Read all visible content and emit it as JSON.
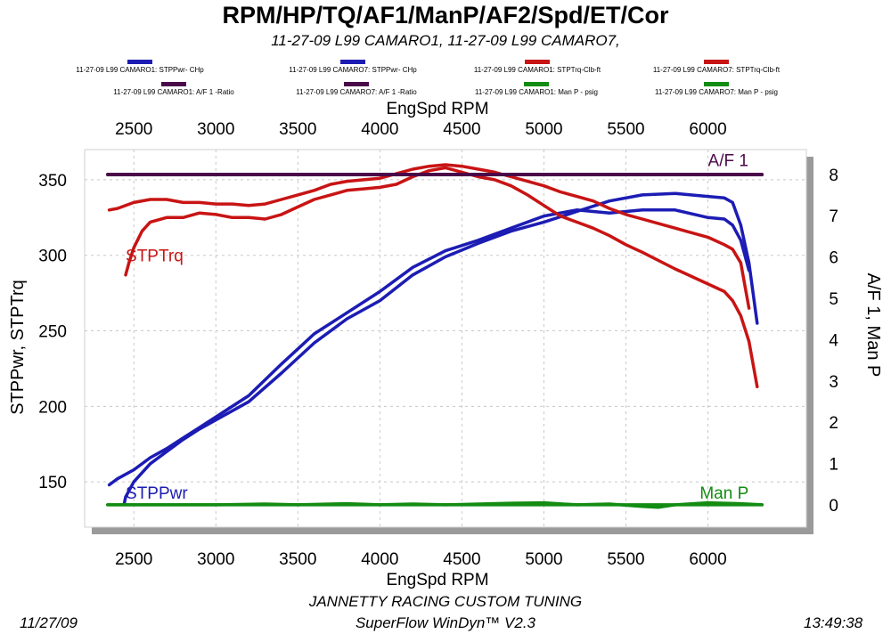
{
  "title": "RPM/HP/TQ/AF1/ManP/AF2/Spd/ET/Cor",
  "subtitle": "11-27-09 L99 CAMARO1, 11-27-09 L99 CAMARO7,",
  "legend": [
    {
      "label": "11-27-09 L99 CAMARO1: STPPwr- CHp",
      "color": "#1c1cb4"
    },
    {
      "label": "11-27-09 L99 CAMARO7: STPPwr- CHp",
      "color": "#1c1cb4"
    },
    {
      "label": "11-27-09 L99 CAMARO1: STPTrq-Clb-ft",
      "color": "#c81414"
    },
    {
      "label": "11-27-09 L99 CAMARO7: STPTrq-Clb-ft",
      "color": "#c81414"
    },
    {
      "label": "11-27-09 L99 CAMARO1: A/F 1 -Ratio",
      "color": "#4a0a4a"
    },
    {
      "label": "11-27-09 L99 CAMARO7: A/F 1 -Ratio",
      "color": "#4a0a4a"
    },
    {
      "label": "11-27-09 L99 CAMARO1: Man P - psig",
      "color": "#128c12"
    },
    {
      "label": "11-27-09 L99 CAMARO7: Man P - psig",
      "color": "#128c12"
    }
  ],
  "footer": {
    "shop": "JANNETTY RACING CUSTOM TUNING",
    "software": "SuperFlow WinDyn™ V2.3",
    "date": "11/27/09",
    "time": "13:49:38"
  },
  "chart_data": {
    "type": "line",
    "xlabel": "EngSpd  RPM",
    "ylabel_left": "STPPwr, STPTrq",
    "ylabel_right": "A/F 1, Man P",
    "xlim": [
      2200,
      6600
    ],
    "ylim_left": [
      120,
      370
    ],
    "ylim_right": [
      -0.54,
      8.6
    ],
    "x_ticks": [
      2500,
      3000,
      3500,
      4000,
      4500,
      5000,
      5500,
      6000
    ],
    "y_ticks_left": [
      150,
      200,
      250,
      300,
      350
    ],
    "y_ticks_right": [
      0,
      1,
      2,
      3,
      4,
      5,
      6,
      7,
      8
    ],
    "grid": true,
    "annotations": [
      {
        "text": "STPTrq",
        "color": "#c81414",
        "x": 2450,
        "y": 296,
        "axis": "left"
      },
      {
        "text": "STPPwr",
        "color": "#1c1cb4",
        "x": 2450,
        "y": 139,
        "axis": "left"
      },
      {
        "text": "A/F 1",
        "color": "#4a0a4a",
        "x": 6000,
        "y": 8.2,
        "axis": "right"
      },
      {
        "text": "Man P",
        "color": "#128c12",
        "x": 5950,
        "y": 0.15,
        "axis": "right"
      }
    ],
    "series": [
      {
        "axis": "left",
        "color": "#1c1cb4",
        "x": [
          2440,
          2450,
          2500,
          2600,
          2700,
          2800,
          2900,
          3000,
          3200,
          3400,
          3600,
          3800,
          4000,
          4200,
          4400,
          4600,
          4800,
          5000,
          5200,
          5400,
          5600,
          5800,
          6000,
          6100,
          6150,
          6200,
          6250,
          6300
        ],
        "values": [
          135,
          140,
          150,
          162,
          170,
          178,
          185,
          191,
          203,
          222,
          242,
          258,
          270,
          287,
          299,
          308,
          316,
          322,
          329,
          336,
          340,
          341,
          339,
          338,
          335,
          320,
          295,
          255
        ]
      },
      {
        "axis": "left",
        "color": "#1c1cb4",
        "x": [
          2350,
          2400,
          2500,
          2600,
          2700,
          2800,
          2900,
          3000,
          3200,
          3400,
          3600,
          3800,
          4000,
          4200,
          4400,
          4600,
          4800,
          5000,
          5200,
          5400,
          5600,
          5800,
          6000,
          6100,
          6150,
          6200,
          6250
        ],
        "values": [
          148,
          152,
          158,
          166,
          172,
          179,
          186,
          193,
          207,
          228,
          248,
          262,
          276,
          292,
          303,
          310,
          318,
          326,
          330,
          328,
          330,
          330,
          325,
          324,
          320,
          310,
          290
        ]
      },
      {
        "axis": "left",
        "color": "#c81414",
        "x": [
          2450,
          2470,
          2500,
          2550,
          2600,
          2700,
          2800,
          2900,
          3000,
          3100,
          3200,
          3300,
          3400,
          3500,
          3600,
          3700,
          3800,
          3900,
          4000,
          4100,
          4200,
          4300,
          4400,
          4500,
          4600,
          4700,
          4800,
          4900,
          5000,
          5100,
          5200,
          5300,
          5400,
          5500,
          5600,
          5800,
          6000,
          6100,
          6150,
          6200,
          6250,
          6300
        ],
        "values": [
          287,
          295,
          305,
          316,
          322,
          325,
          325,
          328,
          327,
          325,
          325,
          324,
          327,
          332,
          337,
          340,
          343,
          344,
          345,
          347,
          352,
          356,
          358,
          355,
          352,
          350,
          346,
          340,
          333,
          326,
          322,
          318,
          313,
          307,
          302,
          291,
          281,
          276,
          270,
          260,
          243,
          213
        ]
      },
      {
        "axis": "left",
        "color": "#c81414",
        "x": [
          2350,
          2400,
          2500,
          2600,
          2700,
          2800,
          2900,
          3000,
          3100,
          3200,
          3300,
          3400,
          3500,
          3600,
          3700,
          3800,
          3900,
          4000,
          4100,
          4200,
          4300,
          4400,
          4500,
          4600,
          4700,
          4800,
          4900,
          5000,
          5100,
          5200,
          5300,
          5400,
          5500,
          5600,
          5800,
          6000,
          6100,
          6150,
          6200,
          6250
        ],
        "values": [
          330,
          331,
          335,
          337,
          337,
          335,
          335,
          334,
          334,
          333,
          334,
          337,
          340,
          343,
          347,
          349,
          350,
          351,
          354,
          357,
          359,
          360,
          359,
          357,
          355,
          352,
          349,
          346,
          342,
          339,
          336,
          331,
          327,
          324,
          318,
          312,
          307,
          304,
          295,
          265
        ]
      },
      {
        "axis": "right",
        "color": "#4a0a4a",
        "x": [
          2340,
          6330
        ],
        "values": [
          8.0,
          8.0
        ]
      },
      {
        "axis": "right",
        "color": "#4a0a4a",
        "x": [
          2340,
          6330
        ],
        "values": [
          7.99,
          7.99
        ]
      },
      {
        "axis": "right",
        "color": "#128c12",
        "x": [
          2340,
          3000,
          3300,
          3500,
          3800,
          4000,
          4200,
          4400,
          4800,
          5000,
          5200,
          5400,
          5600,
          5700,
          5800,
          6000,
          6200,
          6330
        ],
        "values": [
          0,
          0,
          0.02,
          0,
          0.03,
          0,
          0.02,
          0,
          0.04,
          0.05,
          0,
          0.02,
          -0.04,
          -0.06,
          0,
          0.05,
          0.03,
          0
        ]
      },
      {
        "axis": "right",
        "color": "#128c12",
        "x": [
          2340,
          6330
        ],
        "values": [
          0,
          0
        ]
      }
    ]
  }
}
